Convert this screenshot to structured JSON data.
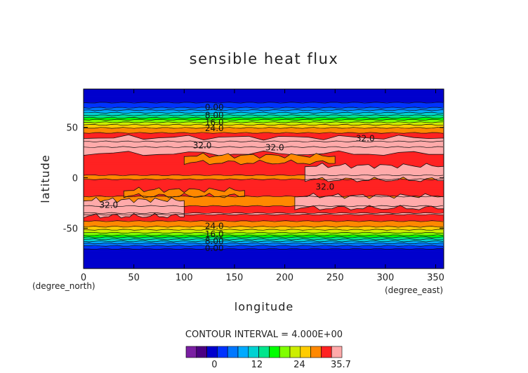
{
  "chart_data": {
    "type": "heatmap",
    "title": "sensible heat flux",
    "xlabel": "longitude",
    "ylabel": "latitude",
    "x_unit": "(degree_east)",
    "y_unit": "(degree_north)",
    "xlim": [
      0,
      358
    ],
    "ylim": [
      -90,
      88
    ],
    "x_ticks": [
      0,
      50,
      100,
      150,
      200,
      250,
      300,
      350
    ],
    "y_ticks": [
      -50,
      0,
      50
    ],
    "contour_interval_text": "CONTOUR INTERVAL = 4.000E+00",
    "contour_levels": [
      0,
      4,
      8,
      12,
      16,
      20,
      24,
      28,
      32
    ],
    "contour_labels": [
      {
        "text": "0.00",
        "lon": 130,
        "lat": 70
      },
      {
        "text": "8.00",
        "lon": 130,
        "lat": 62
      },
      {
        "text": "16.0",
        "lon": 130,
        "lat": 55
      },
      {
        "text": "24.0",
        "lon": 130,
        "lat": 49
      },
      {
        "text": "32.0",
        "lon": 118,
        "lat": 32
      },
      {
        "text": "32.0",
        "lon": 190,
        "lat": 30
      },
      {
        "text": "32.0",
        "lon": 280,
        "lat": 39
      },
      {
        "text": "32.0",
        "lon": 240,
        "lat": -9
      },
      {
        "text": "32.0",
        "lon": 25,
        "lat": -27
      },
      {
        "text": "24.0",
        "lon": 130,
        "lat": -48
      },
      {
        "text": "16.0",
        "lon": 130,
        "lat": -56
      },
      {
        "text": "8.00",
        "lon": 130,
        "lat": -63
      },
      {
        "text": "0.00",
        "lon": 130,
        "lat": -70
      }
    ],
    "zonal_profile": {
      "lat": [
        88,
        80,
        75,
        70,
        65,
        60,
        55,
        50,
        46,
        42,
        35,
        30,
        25,
        20,
        10,
        0,
        -10,
        -20,
        -25,
        -30,
        -36,
        -40,
        -45,
        -50,
        -54,
        -58,
        -62,
        -66,
        -70,
        -75,
        -80,
        -88
      ],
      "value": [
        -2.0,
        -1.2,
        0.5,
        3.0,
        9.0,
        15.0,
        21.5,
        27.0,
        29.5,
        31.0,
        33.5,
        33.0,
        30.5,
        30.5,
        30.5,
        30.0,
        31.0,
        30.0,
        29.0,
        31.0,
        33.5,
        31.0,
        29.5,
        26.0,
        22.0,
        17.0,
        11.0,
        5.0,
        1.0,
        -0.5,
        -1.2,
        -1.5
      ]
    },
    "pink_bands": [
      {
        "lon": [
          0,
          358
        ],
        "lat": [
          24,
          40
        ]
      },
      {
        "lon": [
          0,
          100
        ],
        "lat": [
          -38,
          -22
        ]
      },
      {
        "lon": [
          210,
          358
        ],
        "lat": [
          -30,
          -18
        ]
      },
      {
        "lon": [
          220,
          358
        ],
        "lat": [
          -2,
          12
        ]
      }
    ],
    "orange_bands": [
      {
        "lon": [
          100,
          250
        ],
        "lat": [
          15,
          22
        ]
      },
      {
        "lon": [
          40,
          160
        ],
        "lat": [
          -18,
          -12
        ]
      }
    ],
    "colorbar": {
      "tick_labels": [
        "0",
        "12",
        "24",
        "35.7"
      ],
      "tick_values": [
        0,
        12,
        24,
        35.7
      ],
      "range": [
        -8,
        36
      ],
      "colors": [
        "#7a1fa2",
        "#4b0082",
        "#0000cd",
        "#0033ff",
        "#0077ff",
        "#00aaff",
        "#00d2d2",
        "#00e68c",
        "#00ff00",
        "#7fff00",
        "#ccee00",
        "#ffcc00",
        "#ff8800",
        "#ff2222",
        "#ffaaaa"
      ]
    },
    "grid": false,
    "legend": "bottom"
  }
}
